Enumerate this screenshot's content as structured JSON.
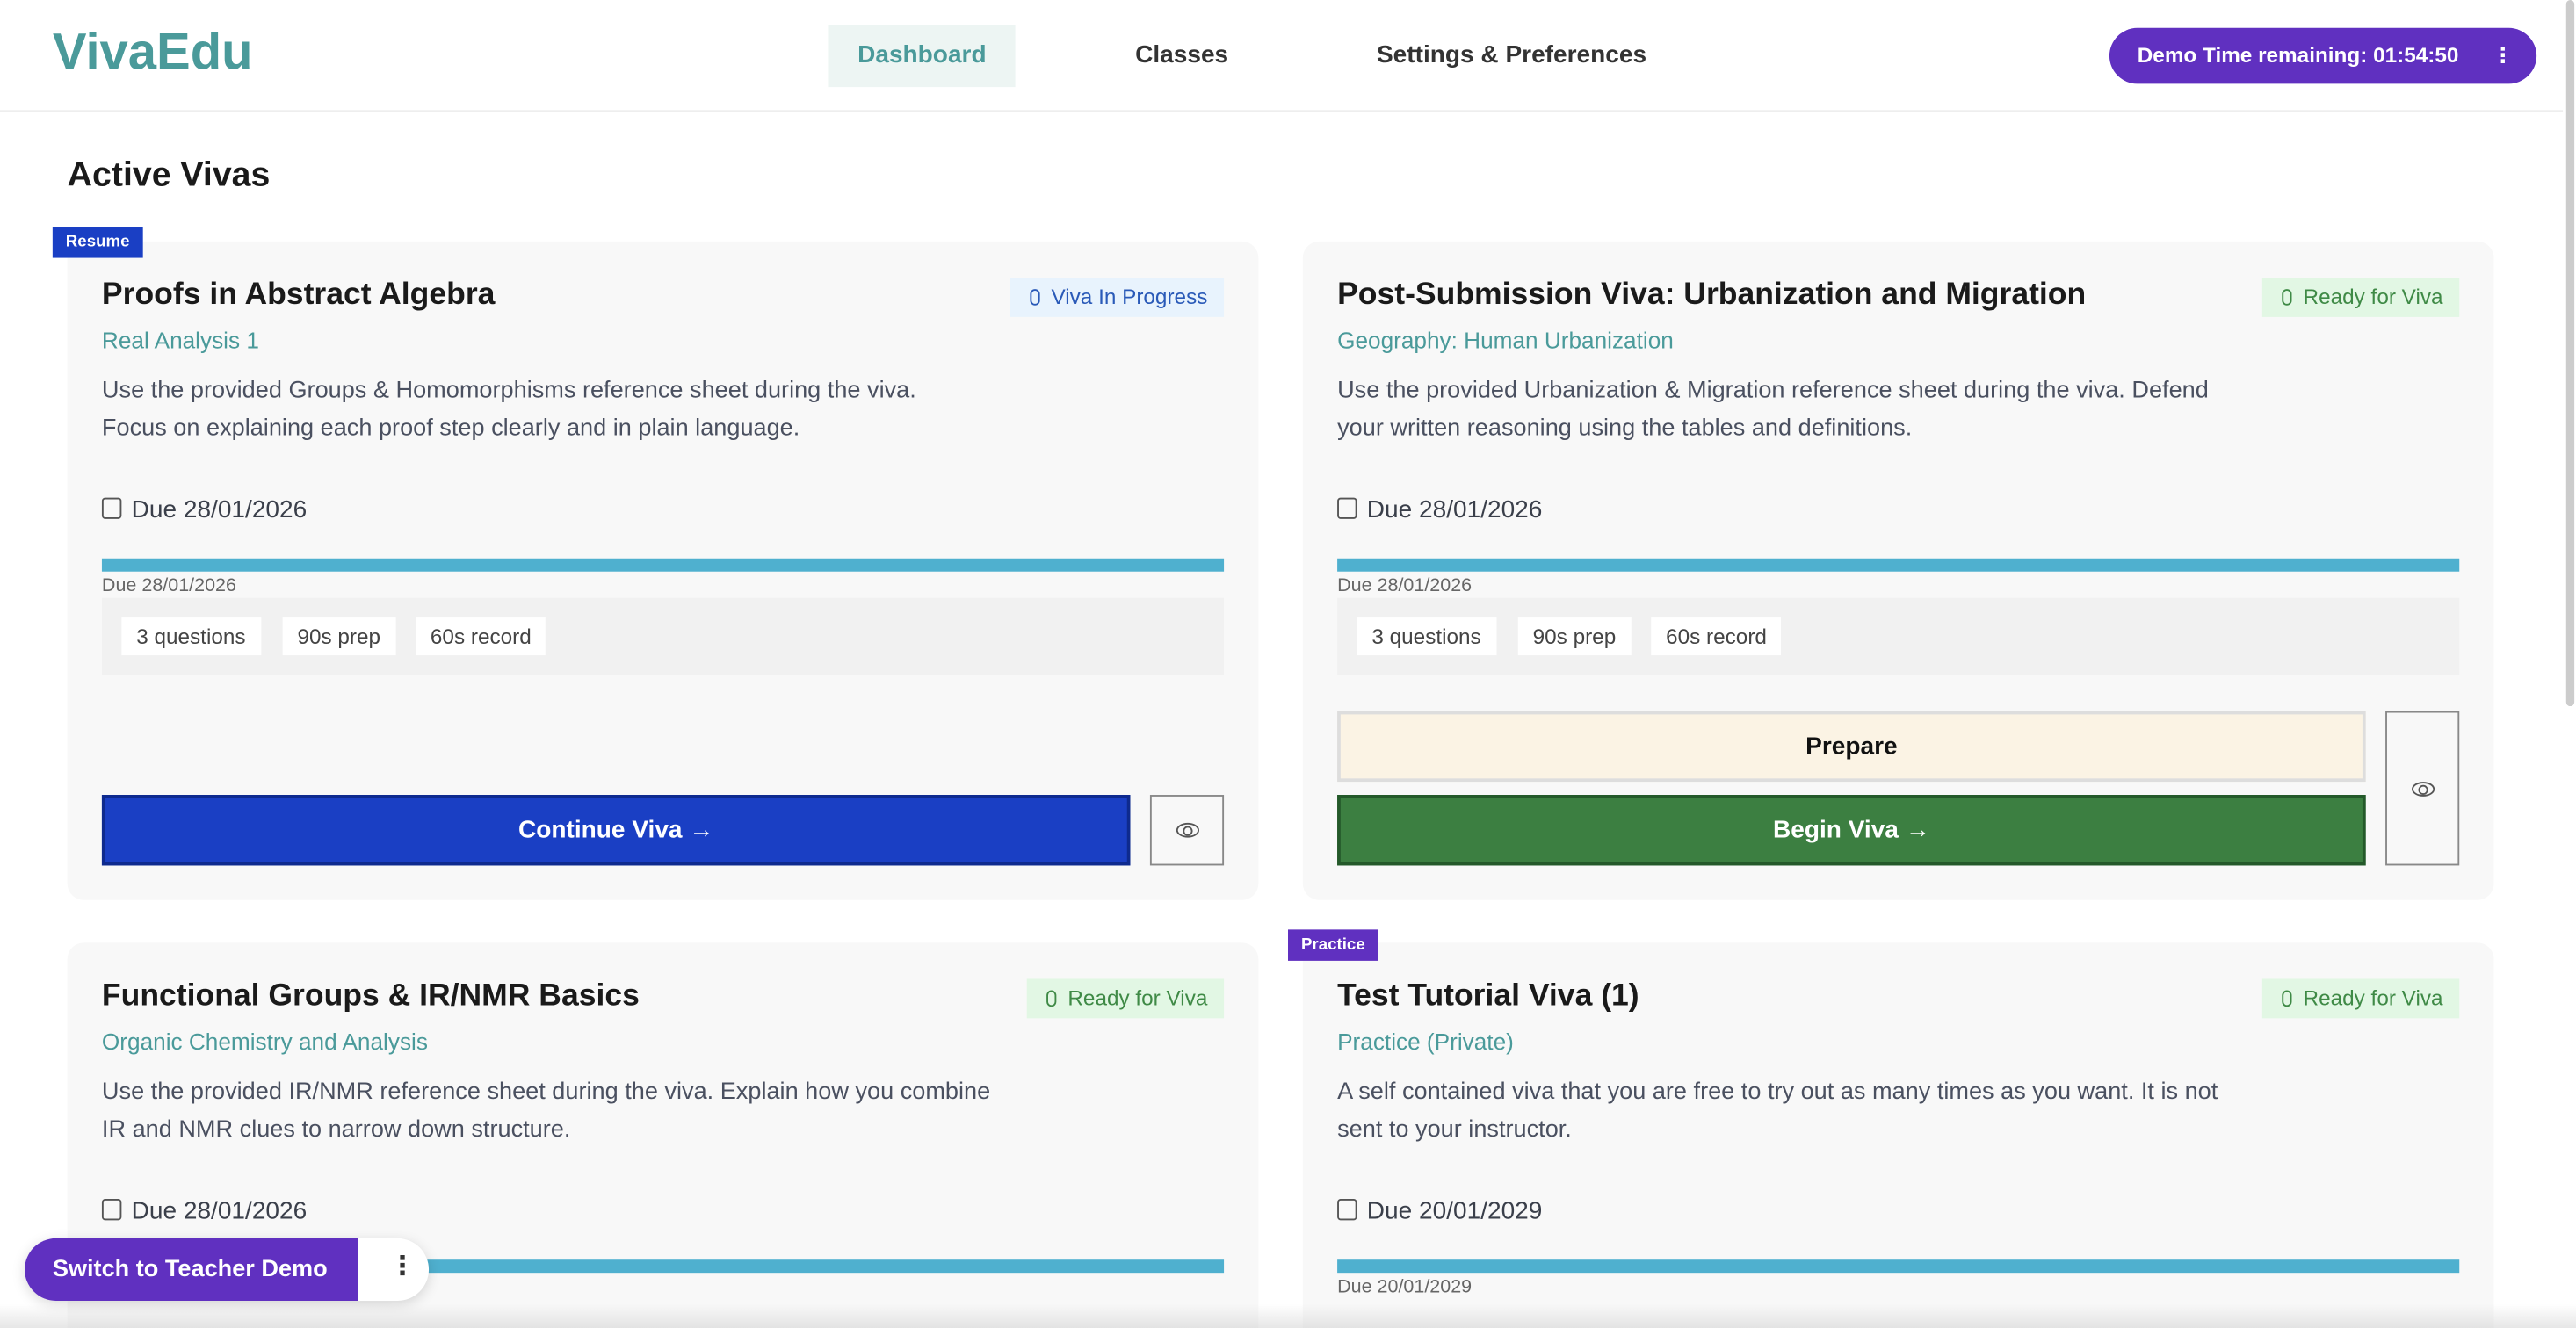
{
  "header": {
    "logo": "VivaEdu",
    "nav": [
      "Dashboard",
      "Classes",
      "Settings & Preferences"
    ],
    "timer": "Demo Time remaining: 01:54:50",
    "menu": "⋮"
  },
  "page_title": "Active Vivas",
  "cards": [
    {
      "flag": "Resume",
      "title": "Proofs in Abstract Algebra",
      "status": "Viva In Progress",
      "subject": "Real Analysis 1",
      "desc1": "Use the provided Groups & Homomorphisms reference sheet during the viva.",
      "desc2": "Focus on explaining each proof step clearly and in plain language.",
      "due": "Due 28/01/2026",
      "due_small": "Due 28/01/2026",
      "chips": [
        "3 questions",
        "90s prep",
        "60s record"
      ],
      "primary": "Continue Viva →"
    },
    {
      "title": "Post-Submission Viva: Urbanization and Migration",
      "status": "Ready for Viva",
      "subject": "Geography: Human Urbanization",
      "desc1": "Use the provided Urbanization & Migration reference sheet during the viva. Defend",
      "desc2": "your written reasoning using the tables and definitions.",
      "due": "Due 28/01/2026",
      "due_small": "Due 28/01/2026",
      "chips": [
        "3 questions",
        "90s prep",
        "60s record"
      ],
      "secondary": "Prepare",
      "primary": "Begin Viva →"
    },
    {
      "title": "Functional Groups & IR/NMR Basics",
      "status": "Ready for Viva",
      "subject": "Organic Chemistry and Analysis",
      "desc1": "Use the provided IR/NMR reference sheet during the viva. Explain how you combine",
      "desc2": "IR and NMR clues to narrow down structure.",
      "due": "Due 28/01/2026"
    },
    {
      "flag": "Practice",
      "title": "Test Tutorial Viva (1)",
      "status": "Ready for Viva",
      "subject": "Practice (Private)",
      "desc1": "A self contained viva that you are free to try out as many times as you want. It is not",
      "desc2": "sent to your instructor.",
      "due": "Due 20/01/2029",
      "due_small": "Due 20/01/2029"
    }
  ],
  "switch": {
    "label": "Switch to Teacher Demo",
    "menu": "⋮"
  },
  "colors": {
    "brand": "#4a9a9a",
    "purple": "#6030c0",
    "blue": "#1a3fc4",
    "green": "#3c7f41",
    "progress": "#4fb0cf"
  }
}
